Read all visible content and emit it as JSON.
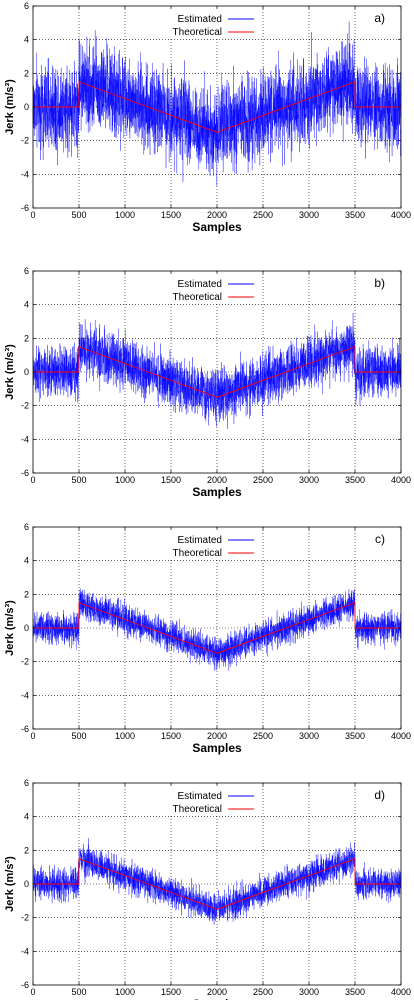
{
  "figure": {
    "panels_shared": {
      "xlabel": "Samples",
      "ylabel": "Jerk (m/s³)",
      "legend": {
        "placement": "top-right",
        "entries": [
          "Estimated",
          "Theoretical"
        ]
      }
    }
  },
  "chart_data": [
    {
      "type": "line",
      "panel_label": "a)",
      "xlabel": "Samples",
      "ylabel": "Jerk (m/s³)",
      "xlim": [
        0,
        4000
      ],
      "ylim": [
        -6,
        6
      ],
      "xticks": [
        0,
        500,
        1000,
        1500,
        2000,
        2500,
        3000,
        3500,
        4000
      ],
      "yticks": [
        -6,
        -4,
        -2,
        0,
        2,
        4,
        6
      ],
      "grid": true,
      "legend": "top-right",
      "noise_amplitude": 1.25,
      "series": [
        {
          "name": "Estimated",
          "color": "#0000ff",
          "x": [
            0,
            499,
            500,
            2000,
            3500,
            3501,
            4000
          ],
          "values": [
            0,
            0,
            1.5,
            -1.5,
            1.5,
            0,
            0
          ]
        },
        {
          "name": "Theoretical",
          "color": "#ff0000",
          "x": [
            0,
            499,
            500,
            2000,
            3500,
            3501,
            4000
          ],
          "values": [
            0,
            0,
            1.5,
            -1.5,
            1.5,
            0,
            0
          ]
        }
      ]
    },
    {
      "type": "line",
      "panel_label": "b)",
      "xlabel": "Samples",
      "ylabel": "Jerk (m/s³)",
      "xlim": [
        0,
        4000
      ],
      "ylim": [
        -6,
        6
      ],
      "xticks": [
        0,
        500,
        1000,
        1500,
        2000,
        2500,
        3000,
        3500,
        4000
      ],
      "yticks": [
        -6,
        -4,
        -2,
        0,
        2,
        4,
        6
      ],
      "grid": true,
      "legend": "top-right",
      "noise_amplitude": 0.75,
      "series": [
        {
          "name": "Estimated",
          "color": "#0000ff",
          "x": [
            0,
            499,
            500,
            2000,
            3500,
            3501,
            4000
          ],
          "values": [
            0,
            0,
            1.5,
            -1.5,
            1.5,
            0,
            0
          ]
        },
        {
          "name": "Theoretical",
          "color": "#ff0000",
          "x": [
            0,
            499,
            500,
            2000,
            3500,
            3501,
            4000
          ],
          "values": [
            0,
            0,
            1.5,
            -1.5,
            1.5,
            0,
            0
          ]
        }
      ]
    },
    {
      "type": "line",
      "panel_label": "c)",
      "xlabel": "Samples",
      "ylabel": "Jerk (m/s³)",
      "xlim": [
        0,
        4000
      ],
      "ylim": [
        -6,
        6
      ],
      "xticks": [
        0,
        500,
        1000,
        1500,
        2000,
        2500,
        3000,
        3500,
        4000
      ],
      "yticks": [
        -6,
        -4,
        -2,
        0,
        2,
        4,
        6
      ],
      "grid": true,
      "legend": "top-right",
      "noise_amplitude": 0.45,
      "series": [
        {
          "name": "Estimated",
          "color": "#0000ff",
          "x": [
            0,
            499,
            500,
            2000,
            3500,
            3501,
            4000
          ],
          "values": [
            0,
            0,
            1.5,
            -1.5,
            1.5,
            0,
            0
          ]
        },
        {
          "name": "Theoretical",
          "color": "#ff0000",
          "x": [
            0,
            499,
            500,
            2000,
            3500,
            3501,
            4000
          ],
          "values": [
            0,
            0,
            1.5,
            -1.5,
            1.5,
            0,
            0
          ]
        }
      ]
    },
    {
      "type": "line",
      "panel_label": "d)",
      "xlabel": "Samples",
      "ylabel": "Jerk (m/s³)",
      "xlim": [
        0,
        4000
      ],
      "ylim": [
        -6,
        6
      ],
      "xticks": [
        0,
        500,
        1000,
        1500,
        2000,
        2500,
        3000,
        3500,
        4000
      ],
      "yticks": [
        -6,
        -4,
        -2,
        0,
        2,
        4,
        6
      ],
      "grid": true,
      "legend": "top-right",
      "noise_amplitude": 0.45,
      "series": [
        {
          "name": "Estimated",
          "color": "#0000ff",
          "x": [
            0,
            499,
            500,
            2000,
            3500,
            3501,
            4000
          ],
          "values": [
            0,
            0,
            1.5,
            -1.5,
            1.5,
            0,
            0
          ]
        },
        {
          "name": "Theoretical",
          "color": "#ff0000",
          "x": [
            0,
            499,
            500,
            2000,
            3500,
            3501,
            4000
          ],
          "values": [
            0,
            0,
            1.5,
            -1.5,
            1.5,
            0,
            0
          ]
        }
      ]
    }
  ]
}
